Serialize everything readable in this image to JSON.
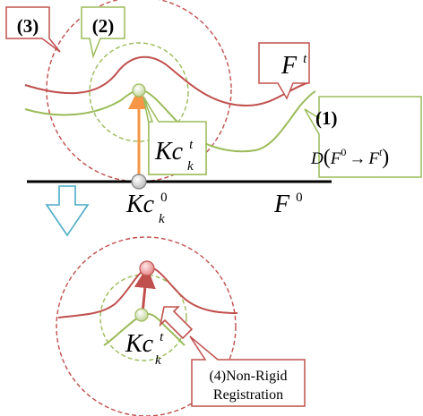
{
  "labels": {
    "callout_3": "(3)",
    "callout_2": "(2)",
    "callout_1": "(1)",
    "Ft_base": "F",
    "Ft_sup": "t",
    "kc_top_base": "Kc",
    "kc_top_sup": "t",
    "kc_top_sub": "k",
    "deform_D": "D",
    "deform_lparen": "(",
    "deform_F0": "F",
    "deform_F0_sup": "0",
    "deform_arrow": "→",
    "deform_Ft": "F",
    "deform_Ft_sup": "t",
    "deform_rparen": ")",
    "kc0_base": "Kc",
    "kc0_sup": "0",
    "kc0_sub": "k",
    "F0_base": "F",
    "F0_sup": "0",
    "kc_bottom_base": "Kc",
    "kc_bottom_sup": "t",
    "kc_bottom_sub": "k",
    "nonrigid_line1": "(4)Non-Rigid",
    "nonrigid_line2": "Registration"
  },
  "colors": {
    "red": "#c0504d",
    "green": "#9bbb59",
    "orange": "#f79646",
    "flow_arrow": "#4bacc6",
    "black": "#000000"
  }
}
